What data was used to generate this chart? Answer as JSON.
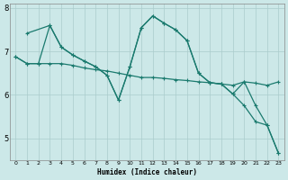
{
  "xlabel": "Humidex (Indice chaleur)",
  "bg_color": "#cce8e8",
  "grid_color": "#aacccc",
  "line_color": "#1a7a6e",
  "xlim": [
    -0.5,
    23.5
  ],
  "ylim": [
    4.5,
    8.1
  ],
  "yticks": [
    5,
    6,
    7,
    8
  ],
  "xticks": [
    0,
    1,
    2,
    3,
    4,
    5,
    6,
    7,
    8,
    9,
    10,
    11,
    12,
    13,
    14,
    15,
    16,
    17,
    18,
    19,
    20,
    21,
    22,
    23
  ],
  "series": [
    {
      "x": [
        0,
        1,
        2,
        3,
        4,
        5,
        6,
        7,
        8,
        9,
        10,
        11,
        12,
        13,
        14,
        15,
        16,
        17,
        18,
        19,
        20,
        21,
        22,
        23
      ],
      "y": [
        6.88,
        6.72,
        6.72,
        6.72,
        6.72,
        6.68,
        6.62,
        6.58,
        6.55,
        6.5,
        6.45,
        6.4,
        6.4,
        6.38,
        6.35,
        6.33,
        6.3,
        6.28,
        6.25,
        6.22,
        6.3,
        6.27,
        6.22,
        6.3
      ]
    },
    {
      "x": [
        1,
        3,
        4,
        5,
        6,
        7,
        8,
        9,
        10,
        11,
        12,
        13,
        14,
        15,
        16,
        17,
        18,
        19,
        20,
        21,
        22,
        23
      ],
      "y": [
        7.42,
        7.6,
        7.1,
        6.92,
        6.78,
        6.65,
        6.45,
        5.88,
        6.65,
        7.55,
        7.82,
        7.65,
        7.5,
        7.25,
        6.5,
        6.28,
        6.25,
        6.02,
        5.75,
        5.38,
        5.3,
        4.65
      ]
    },
    {
      "x": [
        0,
        1,
        2,
        3,
        4,
        5,
        6,
        7,
        8,
        9,
        10,
        11,
        12,
        13,
        14,
        15,
        16,
        17,
        18,
        19,
        20,
        21,
        22,
        23
      ],
      "y": [
        6.88,
        6.72,
        6.72,
        7.6,
        7.1,
        6.92,
        6.78,
        6.65,
        6.45,
        5.88,
        6.65,
        7.55,
        7.82,
        7.65,
        7.5,
        7.25,
        6.5,
        6.28,
        6.25,
        6.02,
        6.3,
        5.75,
        5.3,
        4.65
      ]
    }
  ]
}
